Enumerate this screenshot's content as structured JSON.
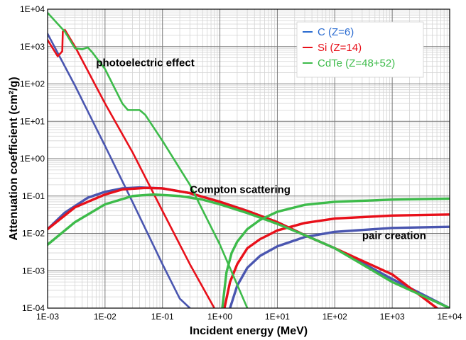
{
  "chart_data": {
    "type": "line",
    "xlabel": "Incident energy (MeV)",
    "ylabel": "Attenuation coefficient (cm²/g)",
    "xscale": "log",
    "yscale": "log",
    "xlim": [
      0.001,
      10000
    ],
    "ylim": [
      0.0001,
      10000
    ],
    "grid": true,
    "legend_position": "top-right",
    "x_tick_labels": [
      "1E-03",
      "1E-02",
      "1E-01",
      "1E+00",
      "1E+01",
      "1E+02",
      "1E+03",
      "1E+04"
    ],
    "y_tick_labels": [
      "1E-04",
      "1E-03",
      "1E-02",
      "1E-01",
      "1E+00",
      "1E+01",
      "1E+02",
      "1E+03",
      "1E+04"
    ],
    "annotations": [
      {
        "text": "photoelectric effect",
        "x": 0.007,
        "y": 300
      },
      {
        "text": "Compton scattering",
        "x": 0.3,
        "y": 0.12
      },
      {
        "text": "pair creation",
        "x": 300,
        "y": 0.007
      }
    ],
    "series": [
      {
        "name": "C (Z=6)",
        "color": "#4a56b0",
        "legend_color": "#2a6bd0",
        "components": [
          {
            "process": "photoelectric",
            "x": [
              0.001,
              0.003,
              0.01,
              0.03,
              0.1,
              0.2,
              0.3
            ],
            "y": [
              2200,
              90,
              2.2,
              0.07,
              0.0015,
              0.00018,
              0.0001
            ]
          },
          {
            "process": "compton",
            "x": [
              0.001,
              0.002,
              0.005,
              0.01,
              0.02,
              0.04,
              0.1,
              0.3,
              1,
              3,
              10,
              30,
              100,
              1000,
              10000
            ],
            "y": [
              0.013,
              0.036,
              0.09,
              0.13,
              0.16,
              0.17,
              0.16,
              0.12,
              0.07,
              0.04,
              0.02,
              0.009,
              0.004,
              0.0006,
              0.0001
            ]
          },
          {
            "process": "pair",
            "x": [
              1.5,
              2,
              3,
              5,
              10,
              30,
              100,
              1000,
              10000
            ],
            "y": [
              0.0001,
              0.0004,
              0.0012,
              0.0025,
              0.0045,
              0.008,
              0.011,
              0.014,
              0.015
            ]
          }
        ]
      },
      {
        "name": "Si (Z=14)",
        "color": "#e8101a",
        "legend_color": "#e8101a",
        "components": [
          {
            "process": "photoelectric",
            "x": [
              0.001,
              0.0015,
              0.0018,
              0.00184,
              0.002,
              0.003,
              0.01,
              0.03,
              0.1,
              0.3,
              0.8
            ],
            "y": [
              1500,
              550,
              750,
              2500,
              2800,
              1000,
              30,
              1.5,
              0.04,
              0.0015,
              0.0001
            ]
          },
          {
            "process": "compton",
            "x": [
              0.001,
              0.003,
              0.01,
              0.02,
              0.05,
              0.1,
              0.3,
              1,
              3,
              10,
              30,
              100,
              1000,
              6000
            ],
            "y": [
              0.013,
              0.05,
              0.11,
              0.15,
              0.165,
              0.16,
              0.12,
              0.07,
              0.04,
              0.02,
              0.009,
              0.004,
              0.0008,
              0.0001
            ]
          },
          {
            "process": "pair",
            "x": [
              1.2,
              1.5,
              2,
              3,
              5,
              10,
              30,
              100,
              1000,
              10000
            ],
            "y": [
              0.0001,
              0.0005,
              0.0015,
              0.004,
              0.007,
              0.012,
              0.019,
              0.025,
              0.03,
              0.032
            ]
          }
        ]
      },
      {
        "name": "CdTe (Z=48+52)",
        "color": "#3dbb4a",
        "legend_color": "#3dbb4a",
        "components": [
          {
            "process": "photoelectric",
            "x": [
              0.001,
              0.002,
              0.003,
              0.004,
              0.005,
              0.006,
              0.01,
              0.02,
              0.025,
              0.03,
              0.04,
              0.05,
              0.1,
              0.3,
              1,
              3
            ],
            "y": [
              8000,
              2500,
              900,
              850,
              950,
              700,
              250,
              30,
              20,
              20,
              20,
              15,
              3,
              0.2,
              0.005,
              0.0001
            ]
          },
          {
            "process": "compton",
            "x": [
              0.001,
              0.003,
              0.01,
              0.03,
              0.07,
              0.2,
              0.5,
              1,
              3,
              10,
              30,
              100,
              1000,
              10000
            ],
            "y": [
              0.005,
              0.02,
              0.06,
              0.1,
              0.11,
              0.1,
              0.08,
              0.06,
              0.035,
              0.018,
              0.009,
              0.004,
              0.0005,
              0.0001
            ]
          },
          {
            "process": "pair",
            "x": [
              1.1,
              1.3,
              1.6,
              2,
              3,
              5,
              10,
              30,
              100,
              1000,
              10000
            ],
            "y": [
              0.0001,
              0.0009,
              0.003,
              0.006,
              0.013,
              0.023,
              0.038,
              0.058,
              0.07,
              0.08,
              0.085
            ]
          }
        ]
      }
    ]
  }
}
